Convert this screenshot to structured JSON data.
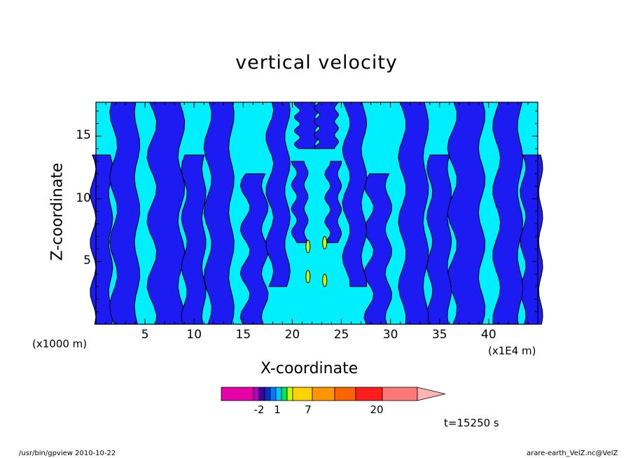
{
  "chart_data": {
    "type": "heatmap",
    "title": "vertical velocity",
    "xlabel": "X-coordinate",
    "ylabel": "Z-coordinate",
    "x_unit_left": "(x1000 m)",
    "x_unit_right": "(x1E4 m)",
    "x_ticks": [
      "5",
      "10",
      "15",
      "20",
      "25",
      "30",
      "35",
      "40"
    ],
    "y_ticks": [
      "5",
      "10",
      "15"
    ],
    "xlim": [
      0,
      45
    ],
    "ylim": [
      0,
      17.7
    ],
    "time_label": "t=15250 s",
    "colorbar": {
      "tick_labels": [
        "-2",
        "1",
        "7",
        "20"
      ],
      "colors": [
        "#e600a8",
        "#b000c8",
        "#3c0096",
        "#0032c8",
        "#0078ff",
        "#00c8ff",
        "#00e650",
        "#c8ff00",
        "#ffd200",
        "#ff9600",
        "#ff6400",
        "#ff1e1e",
        "#ff7878",
        "#ffb4b4"
      ]
    },
    "field_colors": {
      "low": "#1b1bf2",
      "mid": "#00efff",
      "high": "#c8ff00"
    }
  },
  "footer": {
    "left": "/usr/bin/gpview   2010-10-22",
    "right": "arare-earth_VelZ.nc@VelZ"
  }
}
